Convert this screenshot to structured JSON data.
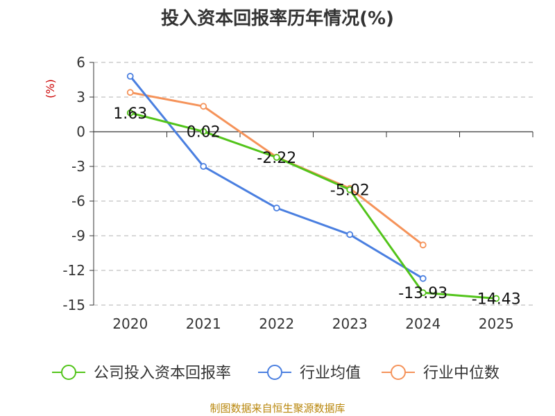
{
  "chart_data": {
    "type": "line",
    "title": "投入资本回报率历年情况(%)",
    "ylabel": "(%)",
    "xlabel": "",
    "ylim": [
      -15,
      6
    ],
    "yticks": [
      6,
      3,
      0,
      -3,
      -6,
      -9,
      -12,
      -15
    ],
    "categories": [
      "2020",
      "2021",
      "2022",
      "2023",
      "2024",
      "2025"
    ],
    "series": [
      {
        "name": "公司投入资本回报率",
        "color": "#52c41a",
        "values": [
          1.63,
          0.02,
          -2.22,
          -5.02,
          -13.93,
          -14.43
        ],
        "labels": [
          "1.63",
          "0.02",
          "-2.22",
          "-5.02",
          "-13.93",
          "-14.43"
        ]
      },
      {
        "name": "行业均值",
        "color": "#4a7fe0",
        "values": [
          4.8,
          -3.0,
          -6.6,
          -8.9,
          -12.7,
          null
        ]
      },
      {
        "name": "行业中位数",
        "color": "#f5935a",
        "values": [
          3.4,
          2.2,
          -2.2,
          -4.9,
          -9.8,
          null
        ]
      }
    ],
    "grid": true,
    "legend": "bottom"
  },
  "source": "制图数据来自恒生聚源数据库"
}
